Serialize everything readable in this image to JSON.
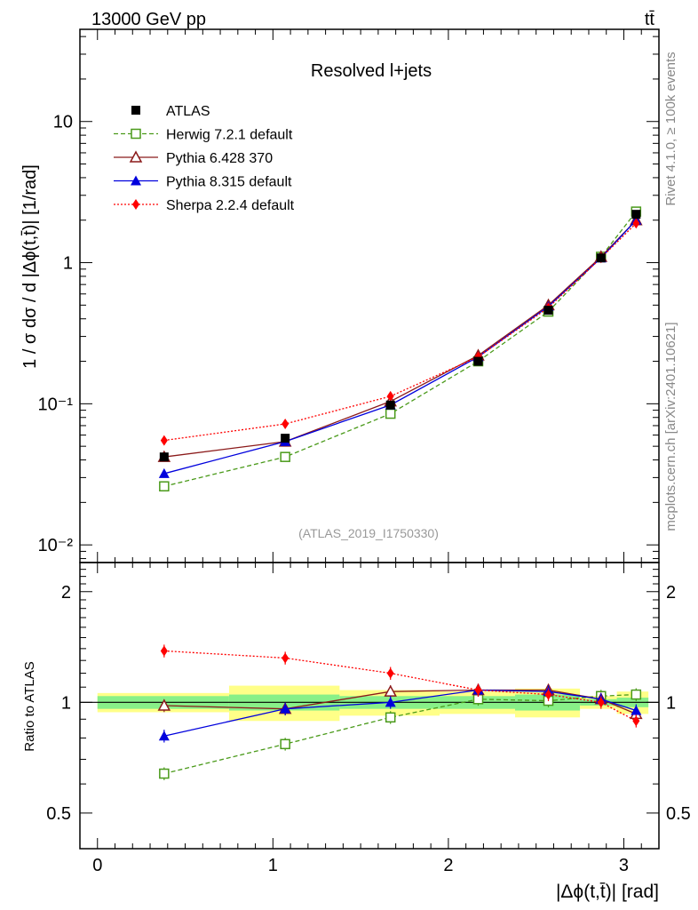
{
  "header": {
    "energy": "13000 GeV pp",
    "process": "tt̄"
  },
  "side_labels": {
    "rivet": "Rivet 4.1.0, ≥ 100k events",
    "mcplots": "mcplots.cern.ch [arXiv:2401.10621]"
  },
  "analysis_id": "(ATLAS_2019_I1750330)",
  "chart_data": [
    {
      "type": "line",
      "title": "Resolved l+jets",
      "ylabel": "1 / σ dσ / d |Δϕ(t,t̄)| [1/rad]",
      "xlabel": "|Δϕ(t,t̄)| [rad]",
      "yscale": "log",
      "xlim": [
        -0.1,
        3.2
      ],
      "ylim": [
        0.0075,
        45
      ],
      "xticks": [
        0,
        1,
        2,
        3
      ],
      "yticks": [
        {
          "value": 0.01,
          "label": "10⁻²"
        },
        {
          "value": 0.1,
          "label": "10⁻¹"
        },
        {
          "value": 1,
          "label": "1"
        },
        {
          "value": 10,
          "label": "10"
        }
      ],
      "x": [
        0.38,
        1.07,
        1.67,
        2.17,
        2.57,
        2.87,
        3.07
      ],
      "series": [
        {
          "name": "ATLAS",
          "color": "#000000",
          "marker": "square",
          "line": "none",
          "values": [
            0.042,
            0.057,
            0.098,
            0.2,
            0.46,
            1.08,
            2.2
          ]
        },
        {
          "name": "Herwig 7.2.1 default",
          "color": "#4a9a1a",
          "marker": "open-square",
          "line": "dashed",
          "values": [
            0.026,
            0.042,
            0.085,
            0.2,
            0.45,
            1.1,
            2.3
          ]
        },
        {
          "name": "Pythia 6.428 370",
          "color": "#8b1a1a",
          "marker": "open-triangle",
          "line": "solid",
          "values": [
            0.042,
            0.054,
            0.104,
            0.22,
            0.5,
            1.1,
            2.0
          ]
        },
        {
          "name": "Pythia 8.315 default",
          "color": "#0000dd",
          "marker": "triangle",
          "line": "solid",
          "values": [
            0.032,
            0.054,
            0.098,
            0.215,
            0.49,
            1.08,
            2.0
          ]
        },
        {
          "name": "Sherpa 2.2.4 default",
          "color": "#ff0000",
          "marker": "diamond",
          "line": "dotted",
          "values": [
            0.055,
            0.072,
            0.113,
            0.215,
            0.48,
            1.08,
            1.9
          ]
        }
      ]
    },
    {
      "type": "line",
      "ylabel": "Ratio to ATLAS",
      "xlabel": "|Δϕ(t,t̄)| [rad]",
      "yscale": "log",
      "xlim": [
        -0.1,
        3.2
      ],
      "ylim": [
        0.4,
        2.4
      ],
      "yticks": [
        {
          "value": 0.5,
          "label": "0.5"
        },
        {
          "value": 1,
          "label": "1"
        },
        {
          "value": 2,
          "label": "2"
        }
      ],
      "x": [
        0.38,
        1.07,
        1.67,
        2.17,
        2.57,
        2.87,
        3.07
      ],
      "bins": [
        [
          0,
          0.75
        ],
        [
          0.75,
          1.38
        ],
        [
          1.38,
          1.95
        ],
        [
          1.95,
          2.38
        ],
        [
          2.38,
          2.75
        ],
        [
          2.75,
          2.96
        ],
        [
          2.96,
          3.14
        ]
      ],
      "stat_band": [
        0.04,
        0.05,
        0.04,
        0.04,
        0.05,
        0.02,
        0.03
      ],
      "total_band": [
        0.06,
        0.11,
        0.08,
        0.07,
        0.09,
        0.04,
        0.07
      ],
      "series": [
        {
          "name": "Herwig 7.2.1 default",
          "color": "#4a9a1a",
          "marker": "open-square",
          "line": "dashed",
          "values": [
            0.64,
            0.77,
            0.91,
            1.02,
            1.01,
            1.04,
            1.05
          ]
        },
        {
          "name": "Pythia 6.428 370",
          "color": "#8b1a1a",
          "marker": "open-triangle",
          "line": "solid",
          "values": [
            0.98,
            0.96,
            1.07,
            1.08,
            1.08,
            1.02,
            0.93
          ]
        },
        {
          "name": "Pythia 8.315 default",
          "color": "#0000dd",
          "marker": "triangle",
          "line": "solid",
          "values": [
            0.81,
            0.96,
            1.0,
            1.08,
            1.07,
            1.02,
            0.95
          ]
        },
        {
          "name": "Sherpa 2.2.4 default",
          "color": "#ff0000",
          "marker": "diamond",
          "line": "dotted",
          "values": [
            1.38,
            1.32,
            1.2,
            1.08,
            1.05,
            1.0,
            0.89
          ]
        }
      ]
    }
  ]
}
